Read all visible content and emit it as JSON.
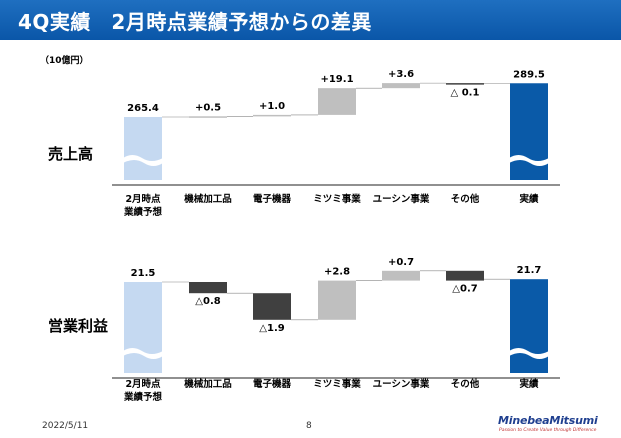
{
  "header": {
    "title": "4Q実績　2月時点業績予想からの差異"
  },
  "unit_label": "（10億円）",
  "footer": {
    "date": "2022/5/11",
    "page": "8"
  },
  "logo": {
    "name": "MinebeaMitsumi",
    "tagline": "Passion to Create Value through Difference"
  },
  "colors": {
    "start": "#c5d9f1",
    "positive": "#bfbfbf",
    "negative": "#404040",
    "end": "#0a5aa8",
    "header": "#1766b8"
  },
  "chart_data": [
    {
      "type": "bar",
      "title": "売上高",
      "categories": [
        "2月時点\n業績予想",
        "機械加工品",
        "電子機器",
        "ミツミ事業",
        "ユーシン事業",
        "その他",
        "実績"
      ],
      "values": [
        265.4,
        0.5,
        1.0,
        19.1,
        3.6,
        -0.1,
        289.5
      ],
      "value_labels": [
        "265.4",
        "+0.5",
        "+1.0",
        "+19.1",
        "+3.6",
        "△ 0.1",
        "289.5"
      ],
      "kinds": [
        "total",
        "delta",
        "delta",
        "delta",
        "delta",
        "delta",
        "total"
      ],
      "axis_break": true
    },
    {
      "type": "bar",
      "title": "営業利益",
      "categories": [
        "2月時点\n業績予想",
        "機械加工品",
        "電子機器",
        "ミツミ事業",
        "ユーシン事業",
        "その他",
        "実績"
      ],
      "values": [
        21.5,
        -0.8,
        -1.9,
        2.8,
        0.7,
        -0.7,
        21.7
      ],
      "value_labels": [
        "21.5",
        "△0.8",
        "△1.9",
        "+2.8",
        "+0.7",
        "△0.7",
        "21.7"
      ],
      "kinds": [
        "total",
        "delta",
        "delta",
        "delta",
        "delta",
        "delta",
        "total"
      ],
      "axis_break": true
    }
  ]
}
